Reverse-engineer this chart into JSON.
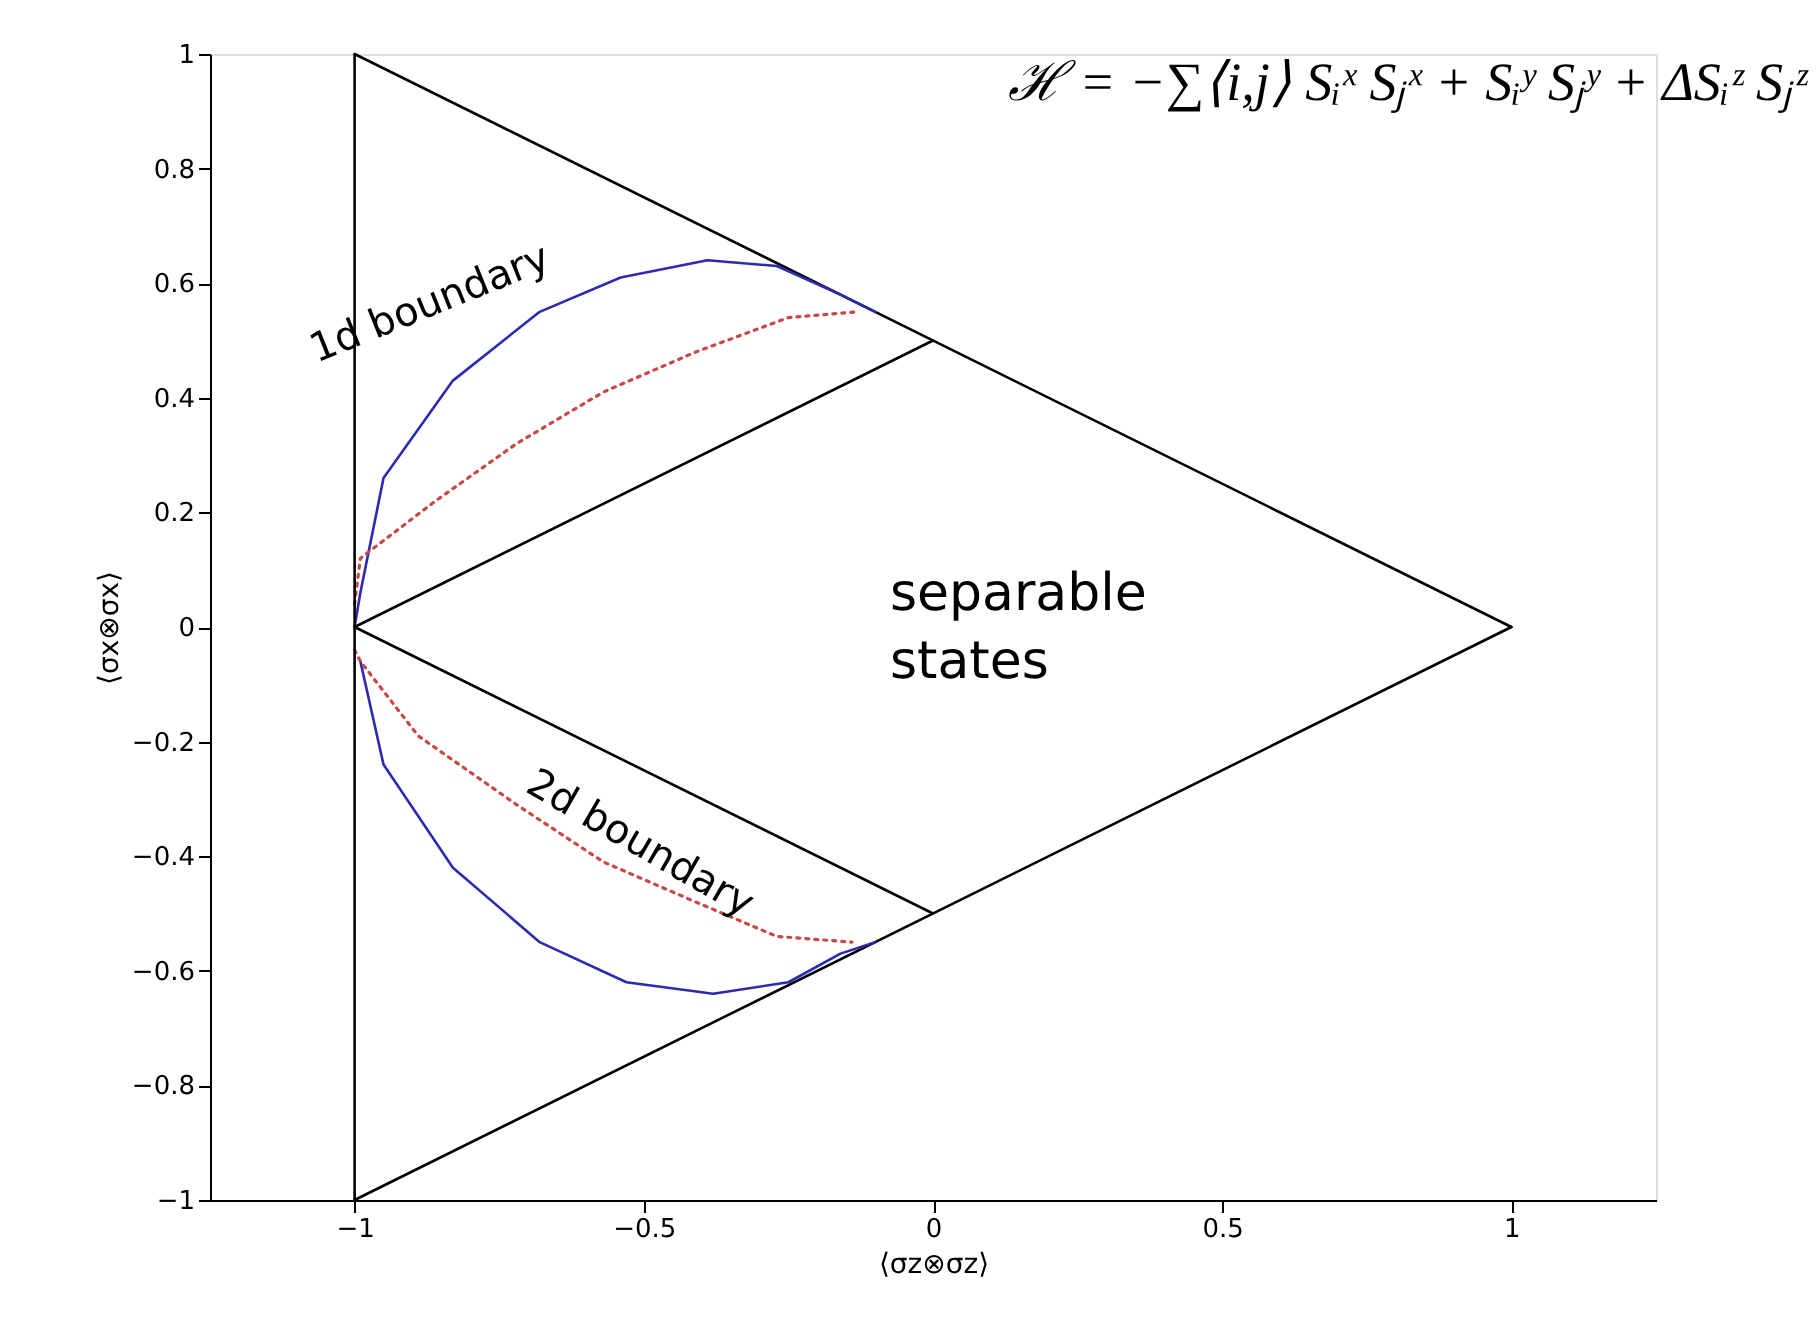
{
  "chart_data": {
    "type": "line",
    "xlabel": "⟨σz⊗σz⟩",
    "ylabel": "⟨σx⊗σx⟩",
    "xlim": [
      -1.25,
      1.25
    ],
    "ylim": [
      -1,
      1
    ],
    "xticks": [
      -1,
      -0.5,
      0,
      0.5,
      1
    ],
    "yticks": [
      -1,
      -0.8,
      -0.6,
      -0.4,
      -0.2,
      0,
      0.2,
      0.4,
      0.6,
      0.8,
      1
    ],
    "grid": false,
    "marker": "none",
    "ref_lines": [
      {
        "axis": "x",
        "value": -1,
        "color": "#000000",
        "line_style": "solid"
      }
    ],
    "series": [
      {
        "color": "#000000",
        "line_style": "solid",
        "x": [
          -1,
          1
        ],
        "values": [
          1,
          0
        ]
      },
      {
        "color": "#000000",
        "line_style": "solid",
        "x": [
          -1,
          1
        ],
        "values": [
          -1,
          0
        ]
      },
      {
        "color": "#000000",
        "line_style": "solid",
        "x": [
          -1,
          0
        ],
        "values": [
          0,
          0.5
        ]
      },
      {
        "color": "#000000",
        "line_style": "solid",
        "x": [
          -1,
          0
        ],
        "values": [
          0,
          -0.5
        ]
      },
      {
        "color": "#2b2bb0",
        "line_style": "solid",
        "x": [
          -1,
          -0.99,
          -0.95,
          -0.83,
          -0.68,
          -0.54,
          -0.39,
          -0.27,
          -0.16,
          -0.1
        ],
        "values": [
          0,
          0.06,
          0.26,
          0.43,
          0.55,
          0.61,
          0.64,
          0.63,
          0.58,
          0.55
        ]
      },
      {
        "color": "#2b2bb0",
        "line_style": "solid",
        "x": [
          -0.99,
          -0.95,
          -0.83,
          -0.68,
          -0.53,
          -0.38,
          -0.25,
          -0.16,
          -0.1
        ],
        "values": [
          -0.06,
          -0.24,
          -0.42,
          -0.55,
          -0.62,
          -0.64,
          -0.62,
          -0.57,
          -0.55
        ]
      },
      {
        "color": "#c84848",
        "line_style": "dotted",
        "x": [
          -1,
          -0.99,
          -0.86,
          -0.72,
          -0.57,
          -0.41,
          -0.25,
          -0.13
        ],
        "values": [
          0.04,
          0.12,
          0.22,
          0.32,
          0.41,
          0.48,
          0.54,
          0.55
        ]
      },
      {
        "color": "#c84848",
        "line_style": "dotted",
        "x": [
          -1,
          -0.99,
          -0.89,
          -0.72,
          -0.57,
          -0.41,
          -0.27,
          -0.14
        ],
        "values": [
          -0.04,
          -0.06,
          -0.19,
          -0.31,
          -0.41,
          -0.48,
          -0.54,
          -0.55
        ]
      }
    ],
    "annotations": [
      "ℋ = −∑⟨i,j⟩ Sᵢˣ Sⱼˣ + Sᵢʸ Sⱼʸ + ΔSᵢᶻ Sⱼᶻ",
      "1d boundary",
      "separable states",
      "2d boundary"
    ]
  }
}
